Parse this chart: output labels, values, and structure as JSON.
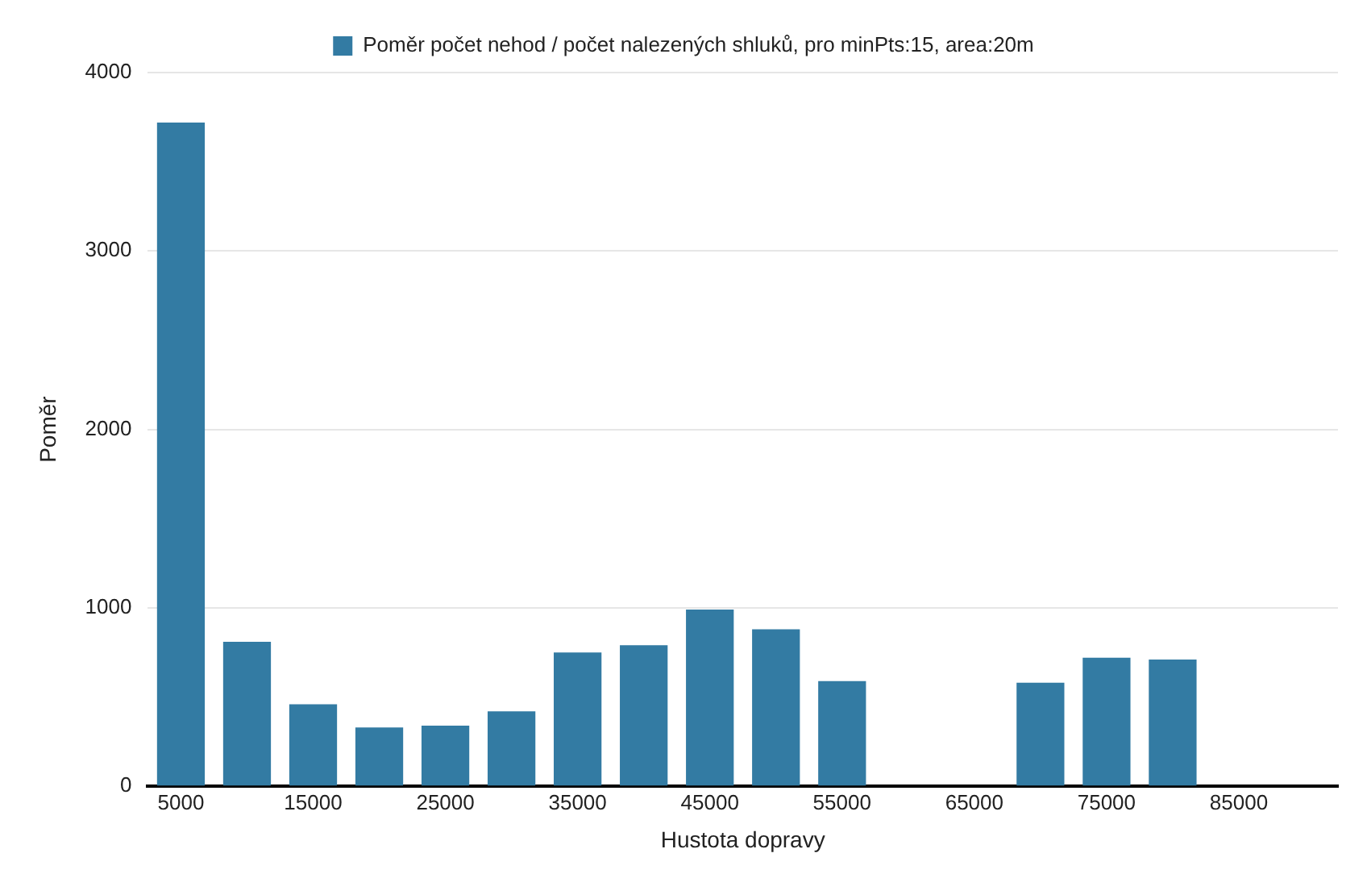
{
  "chart_data": {
    "type": "bar",
    "xlabel": "Hustota dopravy",
    "ylabel": "Poměr",
    "categories": [
      "5000",
      null,
      "15000",
      null,
      "25000",
      null,
      "35000",
      null,
      "45000",
      null,
      "55000",
      null,
      "65000",
      null,
      "75000",
      null,
      "85000",
      null
    ],
    "series": [
      {
        "name": "Poměr počet nehod / počet nalezených shluků, pro minPts:15, area:20m",
        "color": "#337ba3",
        "values": [
          3720,
          810,
          460,
          330,
          340,
          420,
          750,
          790,
          990,
          880,
          590,
          null,
          null,
          580,
          720,
          710,
          null,
          null
        ]
      }
    ],
    "ylim": [
      0,
      4000
    ],
    "yticks": [
      0,
      1000,
      2000,
      3000,
      4000
    ],
    "grid": "y",
    "legend": "top"
  }
}
